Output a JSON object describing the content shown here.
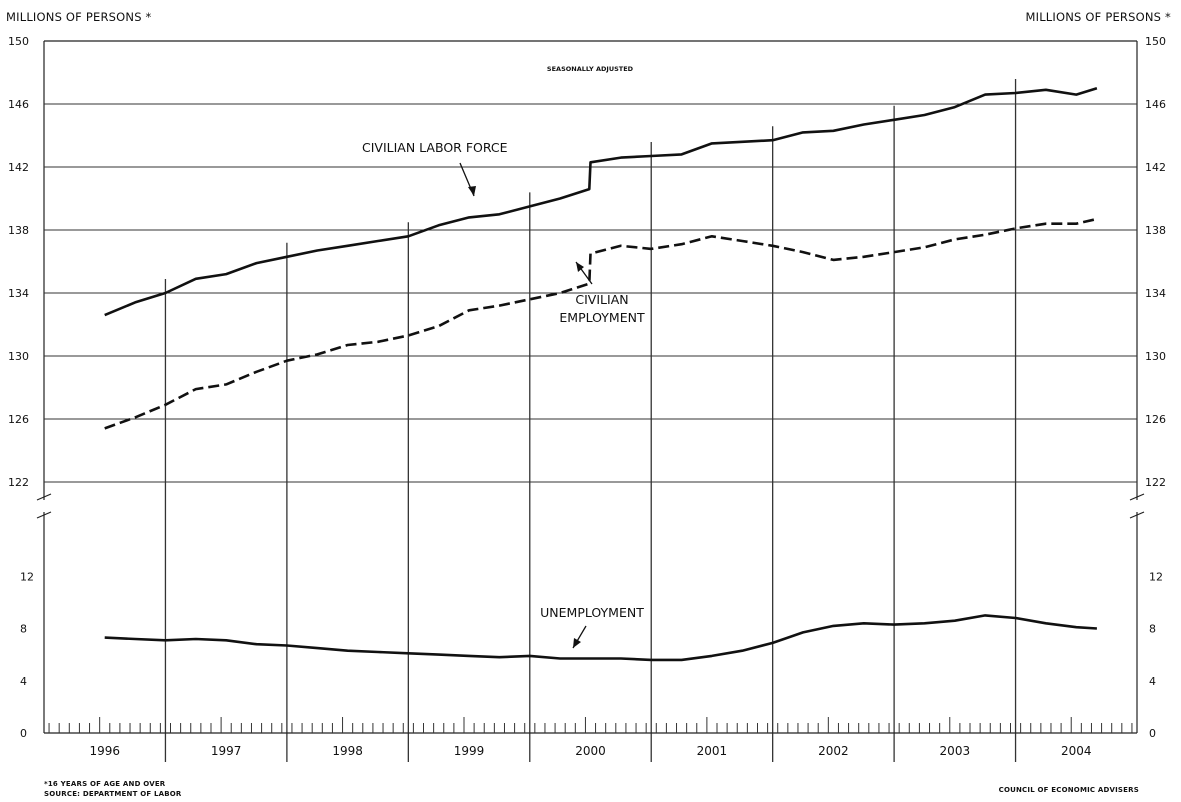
{
  "chart_data": {
    "type": "line",
    "ylabel_left": "MILLIONS OF PERSONS *",
    "ylabel_right": "MILLIONS OF PERSONS *",
    "note": "SEASONALLY ADJUSTED",
    "footnote": "*16 YEARS OF AGE AND OVER",
    "source": "SOURCE: DEPARTMENT OF LABOR",
    "credit": "COUNCIL OF ECONOMIC ADVISERS",
    "x_categories": [
      "1996",
      "1997",
      "1998",
      "1999",
      "2000",
      "2001",
      "2002",
      "2003",
      "2004"
    ],
    "upper_panel": {
      "ylim": [
        122,
        150
      ],
      "yticks": [
        "122",
        "126",
        "130",
        "134",
        "138",
        "142",
        "146",
        "150"
      ],
      "series": [
        {
          "name": "CIVILIAN LABOR FORCE",
          "style": "solid",
          "points": [
            [
              1996.0,
              132.6
            ],
            [
              1996.25,
              133.4
            ],
            [
              1996.5,
              134.0
            ],
            [
              1996.75,
              134.9
            ],
            [
              1997.0,
              135.2
            ],
            [
              1997.25,
              135.9
            ],
            [
              1997.5,
              136.3
            ],
            [
              1997.75,
              136.7
            ],
            [
              1998.0,
              137.0
            ],
            [
              1998.25,
              137.3
            ],
            [
              1998.5,
              137.6
            ],
            [
              1998.75,
              138.3
            ],
            [
              1999.0,
              138.8
            ],
            [
              1999.25,
              139.0
            ],
            [
              1999.5,
              139.5
            ],
            [
              1999.75,
              140.0
            ],
            [
              1999.99,
              140.6
            ],
            [
              2000.0,
              142.3
            ],
            [
              2000.25,
              142.6
            ],
            [
              2000.5,
              142.7
            ],
            [
              2000.75,
              142.8
            ],
            [
              2001.0,
              143.5
            ],
            [
              2001.25,
              143.6
            ],
            [
              2001.5,
              143.7
            ],
            [
              2001.75,
              144.2
            ],
            [
              2002.0,
              144.3
            ],
            [
              2002.25,
              144.7
            ],
            [
              2002.5,
              145.0
            ],
            [
              2002.75,
              145.3
            ],
            [
              2003.0,
              145.8
            ],
            [
              2003.25,
              146.6
            ],
            [
              2003.5,
              146.7
            ],
            [
              2003.75,
              146.9
            ],
            [
              2004.0,
              146.6
            ],
            [
              2004.17,
              147.0
            ]
          ]
        },
        {
          "name": "CIVILIAN EMPLOYMENT",
          "style": "dashed",
          "points": [
            [
              1996.0,
              125.4
            ],
            [
              1996.25,
              126.1
            ],
            [
              1996.5,
              126.9
            ],
            [
              1996.75,
              127.9
            ],
            [
              1997.0,
              128.2
            ],
            [
              1997.25,
              129.0
            ],
            [
              1997.5,
              129.7
            ],
            [
              1997.75,
              130.1
            ],
            [
              1998.0,
              130.7
            ],
            [
              1998.25,
              130.9
            ],
            [
              1998.5,
              131.3
            ],
            [
              1998.75,
              131.9
            ],
            [
              1999.0,
              132.9
            ],
            [
              1999.25,
              133.2
            ],
            [
              1999.5,
              133.6
            ],
            [
              1999.75,
              134.0
            ],
            [
              1999.99,
              134.6
            ],
            [
              2000.0,
              136.5
            ],
            [
              2000.25,
              137.0
            ],
            [
              2000.5,
              136.8
            ],
            [
              2000.75,
              137.1
            ],
            [
              2001.0,
              137.6
            ],
            [
              2001.25,
              137.3
            ],
            [
              2001.5,
              137.0
            ],
            [
              2001.75,
              136.6
            ],
            [
              2002.0,
              136.1
            ],
            [
              2002.25,
              136.3
            ],
            [
              2002.5,
              136.6
            ],
            [
              2002.75,
              136.9
            ],
            [
              2003.0,
              137.4
            ],
            [
              2003.25,
              137.7
            ],
            [
              2003.5,
              138.1
            ],
            [
              2003.75,
              138.4
            ],
            [
              2004.0,
              138.4
            ],
            [
              2004.17,
              138.7
            ]
          ]
        }
      ]
    },
    "lower_panel": {
      "ylim": [
        0,
        16
      ],
      "yticks": [
        "0",
        "4",
        "8",
        "12"
      ],
      "series": [
        {
          "name": "UNEMPLOYMENT",
          "style": "solid",
          "points": [
            [
              1996.0,
              7.3
            ],
            [
              1996.25,
              7.2
            ],
            [
              1996.5,
              7.1
            ],
            [
              1996.75,
              7.2
            ],
            [
              1997.0,
              7.1
            ],
            [
              1997.25,
              6.8
            ],
            [
              1997.5,
              6.7
            ],
            [
              1997.75,
              6.5
            ],
            [
              1998.0,
              6.3
            ],
            [
              1998.25,
              6.2
            ],
            [
              1998.5,
              6.1
            ],
            [
              1998.75,
              6.0
            ],
            [
              1999.0,
              5.9
            ],
            [
              1999.25,
              5.8
            ],
            [
              1999.5,
              5.9
            ],
            [
              1999.75,
              5.7
            ],
            [
              2000.0,
              5.7
            ],
            [
              2000.25,
              5.7
            ],
            [
              2000.5,
              5.6
            ],
            [
              2000.75,
              5.6
            ],
            [
              2001.0,
              5.9
            ],
            [
              2001.25,
              6.3
            ],
            [
              2001.5,
              6.9
            ],
            [
              2001.75,
              7.7
            ],
            [
              2002.0,
              8.2
            ],
            [
              2002.25,
              8.4
            ],
            [
              2002.5,
              8.3
            ],
            [
              2002.75,
              8.4
            ],
            [
              2003.0,
              8.6
            ],
            [
              2003.25,
              9.0
            ],
            [
              2003.5,
              8.8
            ],
            [
              2003.75,
              8.4
            ],
            [
              2004.0,
              8.1
            ],
            [
              2004.17,
              8.0
            ]
          ]
        }
      ]
    },
    "series_labels": {
      "labor_force": "CIVILIAN LABOR FORCE",
      "employment_line1": "CIVILIAN",
      "employment_line2": "EMPLOYMENT",
      "unemployment": "UNEMPLOYMENT"
    },
    "grid": true
  }
}
